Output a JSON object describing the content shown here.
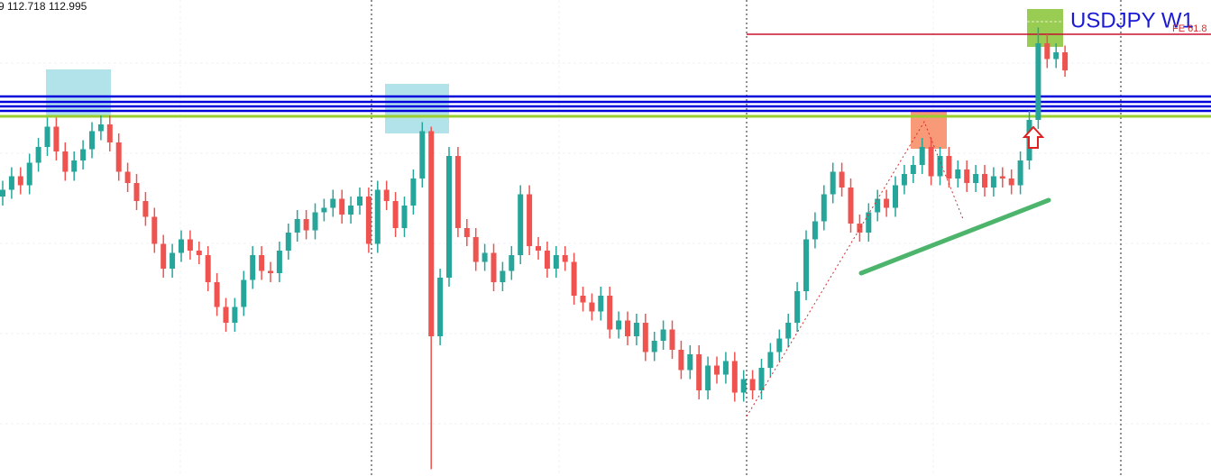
{
  "chart_data": {
    "type": "candlestick",
    "title": "USDJPY W1",
    "annotation": "FE 61.8",
    "ohlc_text": "9 112.718 112.995",
    "ylim": [
      95,
      116.12
    ],
    "up_color": "#26a69a",
    "down_color": "#ef5350",
    "open": [
      107.4,
      107.7,
      108.3,
      107.9,
      108.9,
      109.6,
      110.5,
      109.4,
      108.5,
      109.0,
      109.5,
      110.3,
      110.6,
      109.8,
      108.5,
      108.0,
      107.2,
      106.5,
      105.3,
      104.2,
      104.9,
      105.5,
      105.0,
      104.8,
      103.6,
      102.5,
      101.8,
      102.5,
      103.7,
      104.8,
      104.1,
      104.0,
      105.0,
      105.8,
      106.4,
      105.9,
      106.7,
      106.9,
      107.3,
      106.6,
      107.0,
      107.4,
      105.3,
      107.7,
      107.2,
      106.0,
      107.0,
      108.2,
      110.3,
      101.2,
      103.8,
      109.2,
      106.0,
      105.6,
      104.5,
      104.9,
      103.6,
      104.1,
      104.8,
      107.5,
      105.2,
      105.0,
      104.2,
      104.8,
      104.5,
      103.0,
      102.7,
      102.3,
      103.0,
      101.5,
      101.9,
      101.2,
      101.8,
      100.5,
      101.0,
      101.5,
      100.6,
      99.7,
      100.4,
      98.8,
      99.9,
      99.5,
      100.1,
      98.7,
      99.3,
      98.8,
      99.8,
      100.5,
      101.1,
      101.8,
      103.2,
      105.5,
      106.3,
      107.5,
      108.5,
      107.8,
      106.2,
      105.8,
      106.7,
      107.3,
      106.9,
      107.9,
      108.4,
      108.8,
      109.6,
      108.3,
      109.2,
      108.2,
      108.6,
      108.0,
      108.4,
      107.8,
      108.3,
      108.2,
      107.9,
      109.0,
      110.8,
      114.2,
      113.5,
      113.8
    ],
    "high": [
      108.1,
      108.7,
      108.7,
      109.3,
      110.0,
      110.9,
      110.9,
      109.8,
      109.4,
      109.9,
      110.7,
      111.0,
      111.0,
      110.2,
      108.9,
      108.4,
      107.6,
      106.9,
      105.7,
      105.3,
      105.9,
      105.9,
      105.4,
      105.2,
      104.0,
      102.9,
      102.9,
      104.1,
      105.2,
      105.2,
      104.5,
      105.4,
      106.2,
      106.8,
      106.8,
      107.1,
      107.3,
      107.7,
      107.7,
      107.4,
      107.8,
      107.8,
      108.1,
      108.1,
      107.6,
      107.4,
      108.6,
      110.7,
      110.5,
      104.2,
      109.6,
      109.6,
      106.4,
      106.0,
      105.3,
      105.3,
      104.5,
      105.2,
      107.9,
      107.9,
      105.6,
      105.4,
      105.2,
      105.2,
      104.9,
      103.4,
      103.1,
      103.4,
      103.4,
      102.3,
      102.3,
      102.2,
      102.2,
      101.4,
      101.9,
      101.9,
      101.0,
      100.8,
      100.8,
      100.3,
      100.3,
      100.5,
      100.5,
      99.7,
      99.7,
      100.2,
      100.9,
      101.5,
      102.2,
      103.6,
      105.9,
      106.7,
      107.9,
      108.9,
      108.9,
      108.2,
      106.6,
      107.1,
      107.7,
      107.7,
      108.3,
      108.8,
      109.2,
      110.0,
      110.0,
      109.6,
      109.6,
      109.0,
      109.0,
      108.8,
      108.8,
      108.7,
      108.7,
      108.6,
      109.4,
      111.2,
      114.9,
      114.6,
      114.2,
      114.1
    ],
    "low": [
      107.0,
      107.3,
      107.5,
      107.5,
      108.5,
      109.2,
      109.0,
      108.1,
      108.1,
      108.6,
      109.1,
      109.9,
      109.4,
      108.1,
      107.6,
      106.8,
      106.1,
      104.9,
      103.8,
      103.8,
      104.5,
      104.6,
      104.4,
      103.2,
      102.1,
      101.4,
      101.4,
      102.1,
      103.3,
      103.7,
      103.6,
      103.6,
      104.6,
      105.4,
      105.5,
      105.5,
      106.3,
      106.5,
      106.2,
      106.2,
      106.6,
      104.9,
      104.9,
      106.8,
      105.6,
      105.6,
      106.6,
      107.8,
      95.3,
      100.8,
      103.4,
      105.6,
      105.2,
      104.1,
      104.1,
      103.2,
      103.2,
      103.7,
      104.4,
      104.8,
      104.6,
      103.8,
      103.8,
      104.1,
      102.6,
      102.3,
      101.9,
      101.9,
      101.1,
      101.1,
      100.8,
      100.8,
      100.1,
      100.1,
      100.6,
      100.2,
      99.3,
      99.3,
      98.4,
      98.4,
      99.1,
      99.1,
      98.3,
      98.3,
      98.4,
      98.4,
      99.4,
      100.1,
      100.7,
      101.4,
      102.8,
      105.1,
      105.9,
      107.1,
      107.4,
      105.8,
      105.4,
      105.4,
      106.3,
      106.5,
      106.5,
      107.5,
      108.0,
      108.4,
      107.9,
      107.9,
      107.8,
      107.8,
      107.6,
      107.6,
      107.4,
      107.4,
      107.8,
      107.5,
      107.5,
      108.6,
      110.4,
      113.1,
      113.1,
      112.718
    ],
    "close": [
      107.7,
      108.3,
      107.9,
      108.9,
      109.6,
      110.5,
      109.4,
      108.5,
      109.0,
      109.5,
      110.3,
      110.6,
      109.8,
      108.5,
      108.0,
      107.2,
      106.5,
      105.3,
      104.2,
      104.9,
      105.5,
      105.0,
      104.8,
      103.6,
      102.5,
      101.8,
      102.5,
      103.7,
      104.8,
      104.1,
      104.0,
      105.0,
      105.8,
      106.4,
      105.9,
      106.7,
      106.9,
      107.3,
      106.6,
      107.0,
      107.4,
      105.3,
      107.7,
      107.2,
      106.0,
      107.0,
      108.2,
      110.3,
      101.2,
      103.8,
      109.2,
      106.0,
      105.6,
      104.5,
      104.9,
      103.6,
      104.1,
      104.8,
      107.5,
      105.2,
      105.0,
      104.2,
      104.8,
      104.5,
      103.0,
      102.7,
      102.3,
      103.0,
      101.5,
      101.9,
      101.2,
      101.8,
      100.5,
      101.0,
      101.5,
      100.6,
      99.7,
      100.4,
      98.8,
      99.9,
      99.5,
      100.1,
      98.7,
      99.3,
      98.8,
      99.8,
      100.5,
      101.1,
      101.8,
      103.2,
      105.5,
      106.3,
      107.5,
      108.5,
      107.8,
      106.2,
      105.8,
      106.7,
      107.3,
      106.9,
      107.9,
      108.4,
      108.8,
      109.6,
      108.3,
      109.2,
      108.2,
      108.6,
      108.0,
      108.4,
      107.8,
      108.3,
      108.2,
      107.9,
      109.0,
      110.8,
      114.2,
      113.5,
      113.8,
      112.995
    ],
    "levels": [
      {
        "value": 111.84,
        "color": "#0000dd"
      },
      {
        "value": 111.6,
        "color": "#0000dd"
      },
      {
        "value": 111.4,
        "color": "#0000dd"
      },
      {
        "value": 111.2,
        "color": "#0000dd"
      },
      {
        "value": 110.96,
        "color": "#9acd32"
      },
      {
        "value": 114.6,
        "color": "#c8102e"
      }
    ]
  }
}
